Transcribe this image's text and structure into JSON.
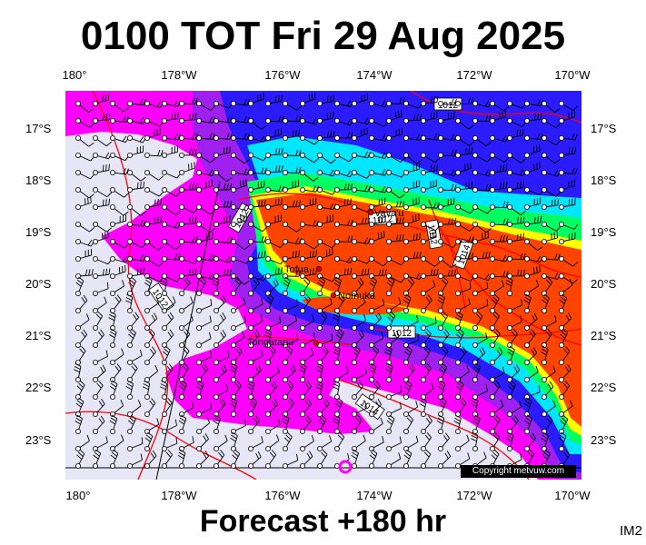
{
  "title": "0100 TOT Fri 29 Aug 2025",
  "subtitle": "Forecast +180 hr",
  "corner_label": "IM2",
  "copyright": "Copyright metvuw.com",
  "lon_labels": [
    "180°",
    "178°W",
    "176°W",
    "174°W",
    "172°W",
    "170°W"
  ],
  "lat_labels": [
    "17°S",
    "18°S",
    "19°S",
    "20°S",
    "21°S",
    "22°S",
    "23°S"
  ],
  "places": [
    "Vava'u",
    "Tofua",
    "Nomuka",
    "Tongatapu"
  ],
  "isobars": [
    "1012",
    "1012",
    "1012",
    "1012",
    "1014",
    "1012",
    "1012",
    "1014",
    "1012"
  ],
  "colors": {
    "bg_light": "#e6e6f7",
    "magenta": "#ff00ff",
    "purple": "#a020f0",
    "blue": "#2a1cff",
    "cyan": "#00e6ff",
    "green": "#00ff60",
    "yellow": "#ffff00",
    "orange": "#ff4400",
    "isobar": "#ff0000"
  }
}
